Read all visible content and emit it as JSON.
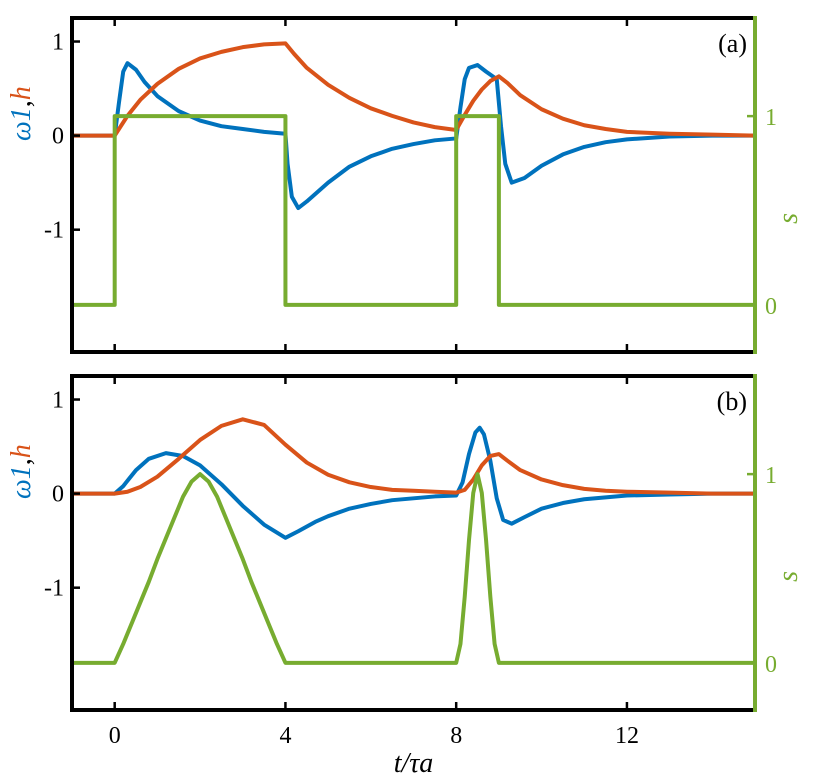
{
  "chart_data": [
    {
      "type": "line",
      "panel_label": "(a)",
      "xlabel": "t/τa",
      "ylabel_left": [
        "ω1",
        ",",
        "h"
      ],
      "ylabel_right": "s",
      "xlim": [
        -1,
        15
      ],
      "ylim_left": [
        -2.3,
        1.25
      ],
      "ylim_right": [
        -0.25,
        1.52
      ],
      "x_ticks": [
        0,
        4,
        8,
        12
      ],
      "x_tick_labels": [
        "",
        "",
        "",
        ""
      ],
      "y_left_ticks": [
        1,
        0,
        -1
      ],
      "y_left_tick_labels": [
        "1",
        "0",
        "-1"
      ],
      "y_right_ticks": [
        1,
        0
      ],
      "y_right_tick_labels": [
        "1",
        "0"
      ],
      "series": [
        {
          "name": "ω1",
          "axis": "left",
          "color": "#0072BD",
          "x": [
            -1,
            0,
            0.1,
            0.2,
            0.3,
            0.5,
            0.7,
            1,
            1.5,
            2,
            2.5,
            3,
            3.5,
            4,
            4.05,
            4.15,
            4.3,
            4.5,
            5,
            5.5,
            6,
            6.5,
            7,
            7.5,
            8,
            8.1,
            8.2,
            8.3,
            8.5,
            8.7,
            8.95,
            9.05,
            9.15,
            9.3,
            9.6,
            10,
            10.5,
            11,
            11.5,
            12,
            13,
            14,
            15
          ],
          "y": [
            0,
            0,
            0.35,
            0.68,
            0.77,
            0.7,
            0.57,
            0.42,
            0.26,
            0.16,
            0.1,
            0.07,
            0.04,
            0.02,
            -0.3,
            -0.65,
            -0.77,
            -0.7,
            -0.5,
            -0.33,
            -0.22,
            -0.14,
            -0.09,
            -0.05,
            -0.03,
            0.3,
            0.6,
            0.72,
            0.75,
            0.68,
            0.6,
            0.1,
            -0.3,
            -0.5,
            -0.45,
            -0.32,
            -0.2,
            -0.12,
            -0.07,
            -0.04,
            -0.01,
            0,
            0
          ]
        },
        {
          "name": "h",
          "axis": "left",
          "color": "#D95319",
          "x": [
            -1,
            0,
            0.3,
            0.6,
            1,
            1.5,
            2,
            2.5,
            3,
            3.5,
            4,
            4.2,
            4.5,
            5,
            5.5,
            6,
            6.5,
            7,
            7.5,
            8,
            8.2,
            8.4,
            8.6,
            8.8,
            9,
            9.2,
            9.5,
            10,
            10.5,
            11,
            11.5,
            12,
            13,
            14,
            15
          ],
          "y": [
            0,
            0,
            0.21,
            0.38,
            0.55,
            0.71,
            0.82,
            0.89,
            0.94,
            0.97,
            0.98,
            0.87,
            0.72,
            0.54,
            0.4,
            0.29,
            0.21,
            0.14,
            0.09,
            0.06,
            0.22,
            0.37,
            0.49,
            0.58,
            0.63,
            0.56,
            0.43,
            0.28,
            0.18,
            0.11,
            0.07,
            0.04,
            0.02,
            0.01,
            0
          ]
        },
        {
          "name": "s",
          "axis": "right",
          "color": "#77AC30",
          "x": [
            -1,
            0,
            0,
            4,
            4,
            8,
            8,
            9,
            9,
            15
          ],
          "y": [
            0,
            0,
            1,
            1,
            0,
            0,
            1,
            1,
            0,
            0
          ]
        }
      ]
    },
    {
      "type": "line",
      "panel_label": "(b)",
      "xlabel": "t/τa",
      "ylabel_left": [
        "ω1",
        ",",
        "h"
      ],
      "ylabel_right": "s",
      "xlim": [
        -1,
        15
      ],
      "ylim_left": [
        -2.3,
        1.25
      ],
      "ylim_right": [
        -0.25,
        1.52
      ],
      "x_ticks": [
        0,
        4,
        8,
        12
      ],
      "x_tick_labels": [
        "0",
        "4",
        "8",
        "12"
      ],
      "y_left_ticks": [
        1,
        0,
        -1
      ],
      "y_left_tick_labels": [
        "1",
        "0",
        "-1"
      ],
      "y_right_ticks": [
        1,
        0
      ],
      "y_right_tick_labels": [
        "1",
        "0"
      ],
      "series": [
        {
          "name": "ω1",
          "axis": "left",
          "color": "#0072BD",
          "x": [
            -1,
            0,
            0.2,
            0.5,
            0.8,
            1.2,
            1.6,
            2,
            2.5,
            3,
            3.5,
            4,
            4.3,
            4.7,
            5,
            5.5,
            6,
            6.5,
            7,
            7.5,
            8,
            8.15,
            8.3,
            8.45,
            8.55,
            8.65,
            8.8,
            8.95,
            9.1,
            9.3,
            9.6,
            10,
            10.5,
            11,
            12,
            13,
            14,
            15
          ],
          "y": [
            0,
            0,
            0.08,
            0.25,
            0.37,
            0.43,
            0.4,
            0.3,
            0.1,
            -0.13,
            -0.33,
            -0.47,
            -0.4,
            -0.3,
            -0.24,
            -0.16,
            -0.11,
            -0.07,
            -0.05,
            -0.03,
            -0.02,
            0.12,
            0.42,
            0.65,
            0.7,
            0.63,
            0.35,
            -0.05,
            -0.28,
            -0.32,
            -0.25,
            -0.16,
            -0.1,
            -0.06,
            -0.02,
            -0.01,
            0,
            0
          ]
        },
        {
          "name": "h",
          "axis": "left",
          "color": "#D95319",
          "x": [
            -1,
            0,
            0.3,
            0.6,
            1,
            1.5,
            2,
            2.5,
            3,
            3.5,
            4,
            4.5,
            5,
            5.5,
            6,
            6.5,
            7,
            7.5,
            8,
            8.2,
            8.4,
            8.6,
            8.8,
            9,
            9.2,
            9.5,
            10,
            10.5,
            11,
            11.5,
            12,
            13,
            14,
            15
          ],
          "y": [
            0,
            0,
            0.02,
            0.07,
            0.18,
            0.37,
            0.57,
            0.72,
            0.79,
            0.73,
            0.52,
            0.33,
            0.2,
            0.12,
            0.07,
            0.04,
            0.03,
            0.02,
            0.01,
            0.04,
            0.15,
            0.3,
            0.4,
            0.42,
            0.35,
            0.25,
            0.15,
            0.09,
            0.05,
            0.03,
            0.02,
            0.01,
            0,
            0
          ]
        },
        {
          "name": "s",
          "axis": "right",
          "color": "#77AC30",
          "x": [
            -1,
            0,
            0.2,
            0.4,
            0.6,
            0.8,
            1,
            1.2,
            1.4,
            1.6,
            1.8,
            2,
            2.2,
            2.4,
            2.6,
            2.8,
            3,
            3.2,
            3.4,
            3.6,
            3.8,
            4,
            8,
            8.1,
            8.2,
            8.3,
            8.4,
            8.5,
            8.6,
            8.7,
            8.8,
            8.9,
            9,
            15
          ],
          "y": [
            0,
            0,
            0.1,
            0.21,
            0.32,
            0.43,
            0.55,
            0.66,
            0.77,
            0.88,
            0.96,
            1,
            0.96,
            0.88,
            0.77,
            0.66,
            0.55,
            0.43,
            0.32,
            0.21,
            0.1,
            0,
            0,
            0.1,
            0.35,
            0.65,
            0.9,
            1,
            0.9,
            0.65,
            0.35,
            0.1,
            0,
            0
          ]
        }
      ]
    }
  ]
}
